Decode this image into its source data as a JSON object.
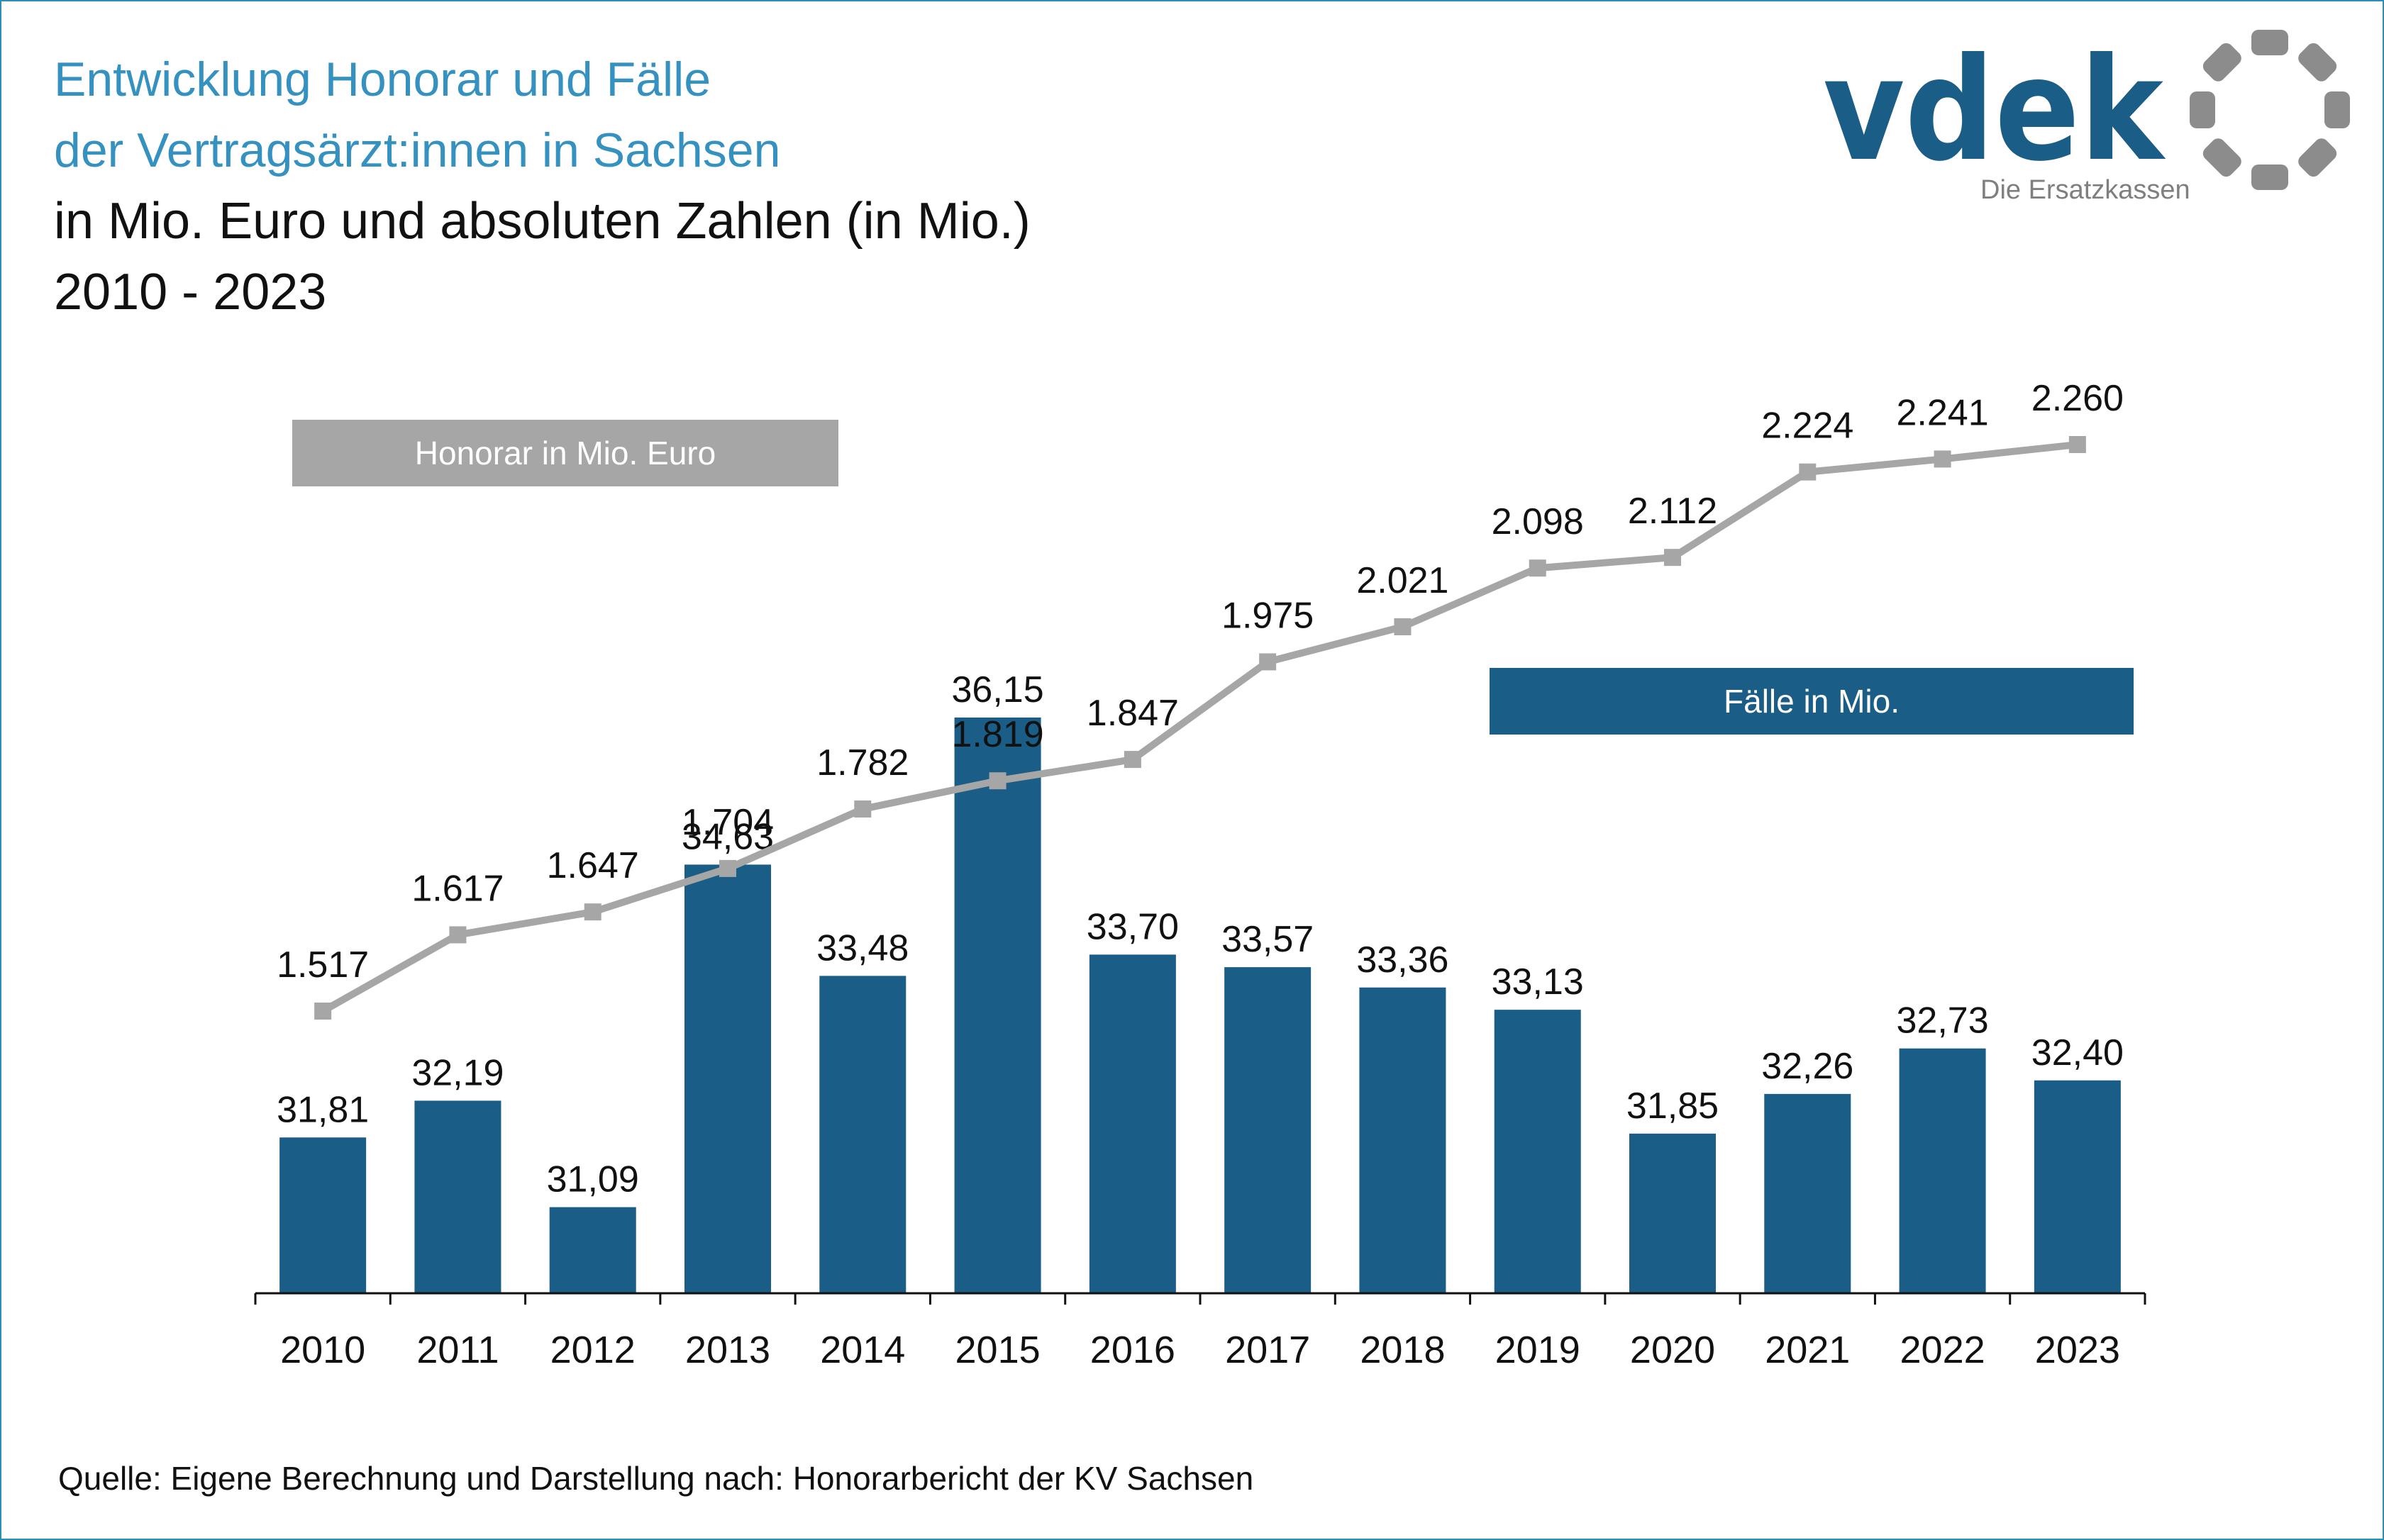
{
  "header": {
    "title_line1": "Entwicklung Honorar und Fälle",
    "title_line2": "der Vertragsärzt:innen in Sachsen",
    "subtitle_line1": "in Mio. Euro und absoluten Zahlen (in Mio.)",
    "subtitle_line2": "2010 - 2023"
  },
  "logo": {
    "text": "vdek",
    "tagline": "Die Ersatzkassen",
    "color": "#1a5d87",
    "dots_color": "#8c8c8c"
  },
  "source": "Quelle: Eigene Berechnung und Darstellung nach: Honorarbericht der KV Sachsen",
  "chart_data": {
    "type": "bar",
    "categories": [
      "2010",
      "2011",
      "2012",
      "2013",
      "2014",
      "2015",
      "2016",
      "2017",
      "2018",
      "2019",
      "2020",
      "2021",
      "2022",
      "2023"
    ],
    "series": [
      {
        "name": "Fälle in Mio.",
        "type": "bar",
        "color": "#1a5d87",
        "values": [
          31.81,
          32.19,
          31.09,
          34.63,
          33.48,
          36.15,
          33.7,
          33.57,
          33.36,
          33.13,
          31.85,
          32.26,
          32.73,
          32.4
        ],
        "labels": [
          "31,81",
          "32,19",
          "31,09",
          "34,63",
          "33,48",
          "36,15",
          "33,70",
          "33,57",
          "33,36",
          "33,13",
          "31,85",
          "32,26",
          "32,73",
          "32,40"
        ]
      },
      {
        "name": "Honorar in Mio. Euro",
        "type": "line",
        "color": "#a6a6a6",
        "values": [
          1517,
          1617,
          1647,
          1704,
          1782,
          1819,
          1847,
          1975,
          2021,
          2098,
          2112,
          2224,
          2241,
          2260
        ],
        "labels": [
          "1.517",
          "1.617",
          "1.647",
          "1.704",
          "1.782",
          "1.819",
          "1.847",
          "1.975",
          "2.021",
          "2.098",
          "2.112",
          "2.224",
          "2.241",
          "2.260"
        ]
      }
    ],
    "legend": [
      {
        "label": "Honorar in Mio. Euro",
        "color": "#a6a6a6"
      },
      {
        "label": "Fälle in Mio.",
        "color": "#1a5d87"
      }
    ],
    "bar_axis_min": 30.2,
    "line_axis_range": [
      1050,
      2600
    ],
    "grid": false
  }
}
